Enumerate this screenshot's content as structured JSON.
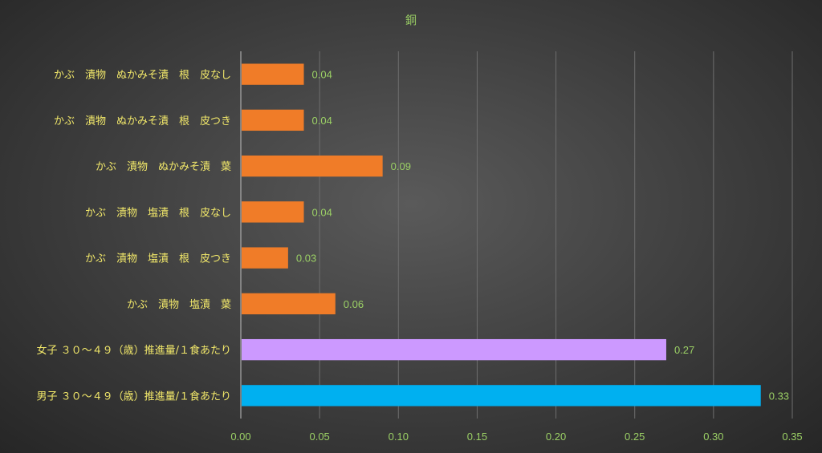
{
  "chart_data": {
    "type": "bar",
    "orientation": "horizontal",
    "title": "銅",
    "categories": [
      "かぶ　漬物　ぬかみそ漬　根　皮なし",
      "かぶ　漬物　ぬかみそ漬　根　皮つき",
      "かぶ　漬物　ぬかみそ漬　葉",
      "かぶ　漬物　塩漬　根　皮なし",
      "かぶ　漬物　塩漬　根　皮つき",
      "かぶ　漬物　塩漬　葉",
      "女子 ３０～４９（歳）推進量/１食あたり",
      "男子 ３０～４９（歳）推進量/１食あたり"
    ],
    "values": [
      0.04,
      0.04,
      0.09,
      0.04,
      0.03,
      0.06,
      0.27,
      0.33
    ],
    "value_labels": [
      "0.04",
      "0.04",
      "0.09",
      "0.04",
      "0.03",
      "0.06",
      "0.27",
      "0.33"
    ],
    "bar_colors": [
      "#f07c28",
      "#f07c28",
      "#f07c28",
      "#f07c28",
      "#f07c28",
      "#f07c28",
      "#cc99ff",
      "#00b0f0"
    ],
    "xlim": [
      0,
      0.35
    ],
    "xticks": [
      0,
      0.05,
      0.1,
      0.15,
      0.2,
      0.25,
      0.3,
      0.35
    ],
    "xtick_labels": [
      "0.00",
      "0.05",
      "0.10",
      "0.15",
      "0.20",
      "0.25",
      "0.30",
      "0.35"
    ],
    "grid": true,
    "legend": "none"
  }
}
